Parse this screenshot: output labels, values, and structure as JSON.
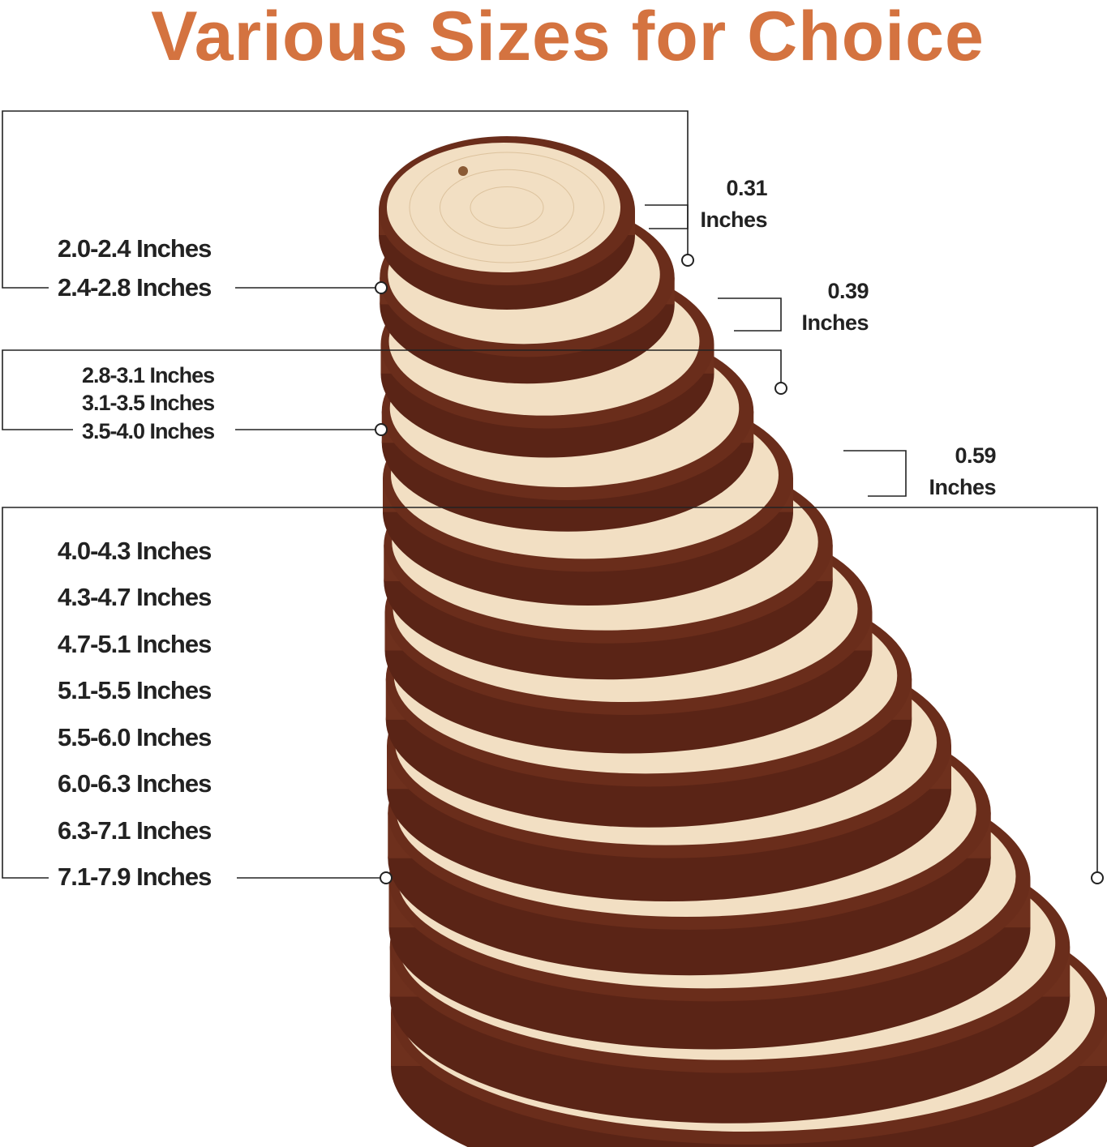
{
  "title": "Various Sizes for Choice",
  "title_color": "#d47340",
  "groups": [
    {
      "labels": [
        "2.0-2.4 Inches",
        "2.4-2.8 Inches"
      ],
      "thickness": "0.31",
      "thickness_unit": "Inches"
    },
    {
      "labels": [
        "2.8-3.1 Inches",
        "3.1-3.5 Inches",
        "3.5-4.0 Inches"
      ],
      "thickness": "0.39",
      "thickness_unit": "Inches"
    },
    {
      "labels": [
        "4.0-4.3 Inches",
        "4.3-4.7 Inches",
        "4.7-5.1 Inches",
        "5.1-5.5 Inches",
        "5.5-6.0 Inches",
        "6.0-6.3 Inches",
        "6.3-7.1 Inches",
        "7.1-7.9 Inches"
      ],
      "thickness": "0.59",
      "thickness_unit": "Inches"
    }
  ],
  "colors": {
    "bark": "#6a2d1b",
    "wood": "#f2dfc3",
    "line": "#222222"
  }
}
